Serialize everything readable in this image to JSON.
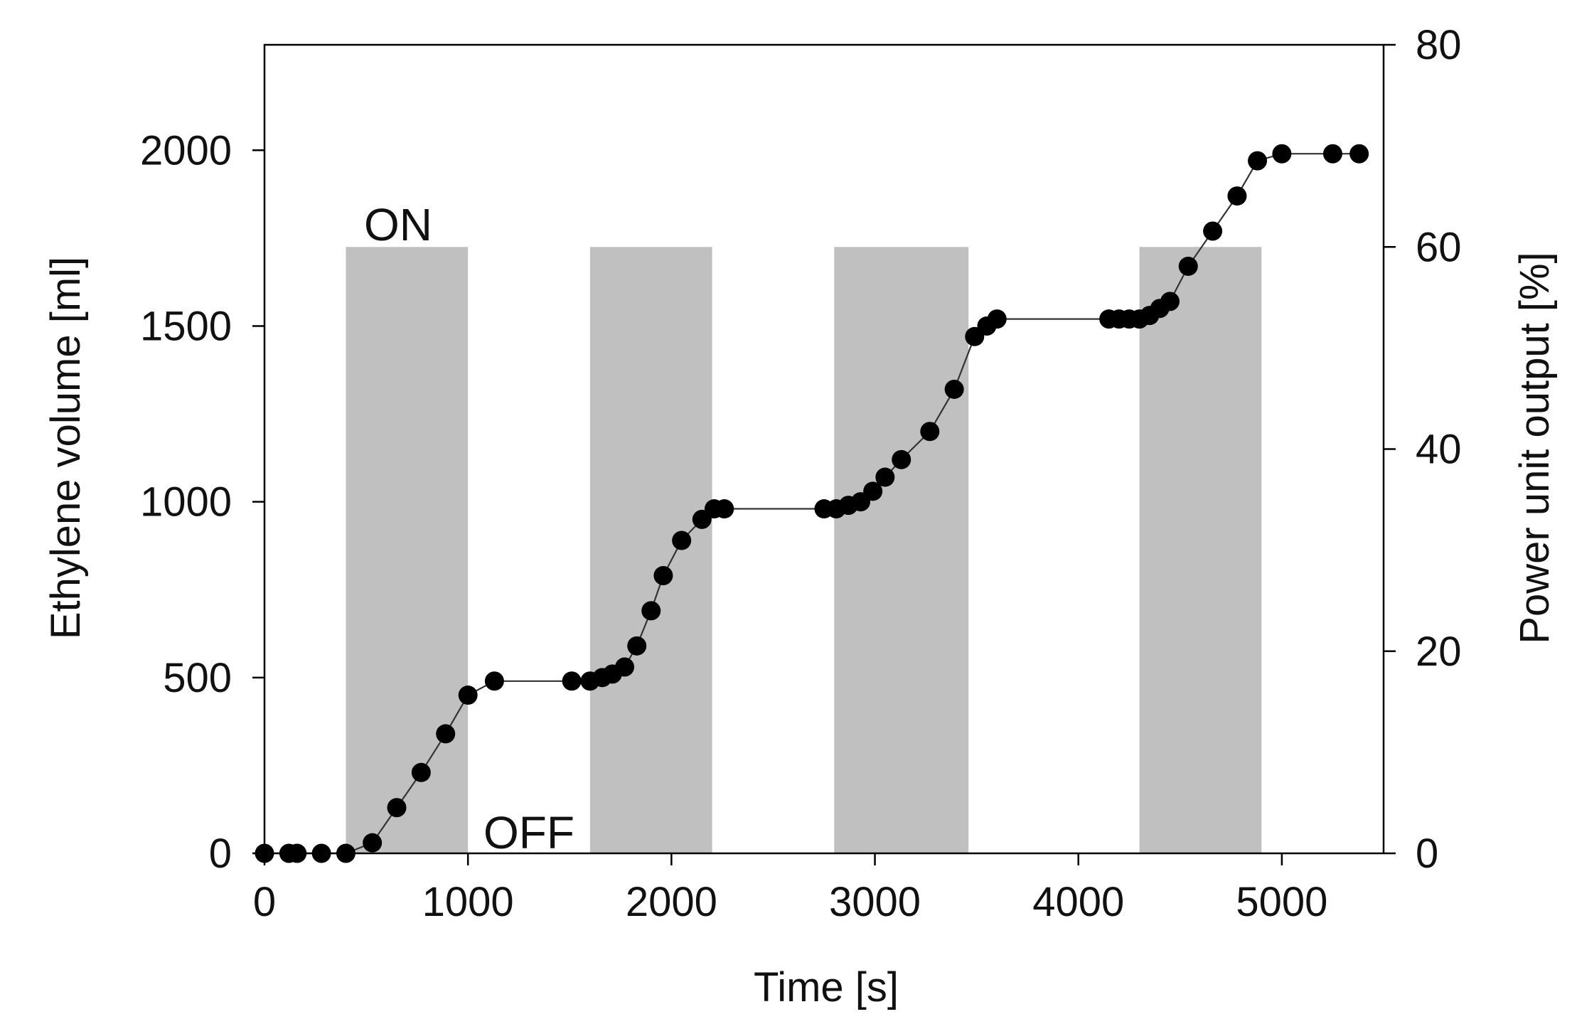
{
  "chart_data": {
    "type": "scatter",
    "xlabel": "Time [s]",
    "ylabel": "Ethylene volume [ml]",
    "y2label": "Power unit output [%]",
    "xlim": [
      0,
      5500
    ],
    "ylim": [
      0,
      2300
    ],
    "y2lim": [
      0,
      80
    ],
    "x_ticks": [
      0,
      1000,
      2000,
      3000,
      4000,
      5000
    ],
    "y_ticks": [
      0,
      500,
      1000,
      1500,
      2000
    ],
    "y2_ticks": [
      0,
      20,
      40,
      60,
      80
    ],
    "grid": false,
    "legend": "none",
    "annotations": {
      "on": "ON",
      "off": "OFF"
    },
    "colors": {
      "markers": "#000000",
      "line": "#333333",
      "power_bars": "#c0c0c0",
      "axes": "#000000"
    },
    "series": [
      {
        "axis": "left",
        "style": "line+markers",
        "x": [
          0,
          120,
          160,
          280,
          400,
          530,
          650,
          770,
          890,
          1000,
          1130,
          1510,
          1600,
          1660,
          1710,
          1770,
          1830,
          1900,
          1960,
          2050,
          2150,
          2210,
          2260,
          2750,
          2810,
          2870,
          2930,
          2990,
          3050,
          3130,
          3270,
          3390,
          3490,
          3550,
          3600,
          4150,
          4200,
          4250,
          4300,
          4350,
          4400,
          4450,
          4540,
          4660,
          4780,
          4880,
          5000,
          5250,
          5380
        ],
        "y": [
          0,
          0,
          0,
          0,
          0,
          30,
          130,
          230,
          340,
          450,
          490,
          490,
          490,
          500,
          510,
          530,
          590,
          690,
          790,
          890,
          950,
          980,
          980,
          980,
          980,
          990,
          1000,
          1030,
          1070,
          1120,
          1200,
          1320,
          1470,
          1500,
          1520,
          1520,
          1520,
          1520,
          1520,
          1530,
          1550,
          1570,
          1670,
          1770,
          1870,
          1970,
          1990,
          1990,
          1990
        ]
      },
      {
        "axis": "right",
        "style": "bars",
        "segments": [
          {
            "start": 400,
            "end": 1000,
            "value": 60
          },
          {
            "start": 1600,
            "end": 2200,
            "value": 60
          },
          {
            "start": 2800,
            "end": 3460,
            "value": 60
          },
          {
            "start": 4300,
            "end": 4900,
            "value": 60
          }
        ]
      }
    ]
  }
}
